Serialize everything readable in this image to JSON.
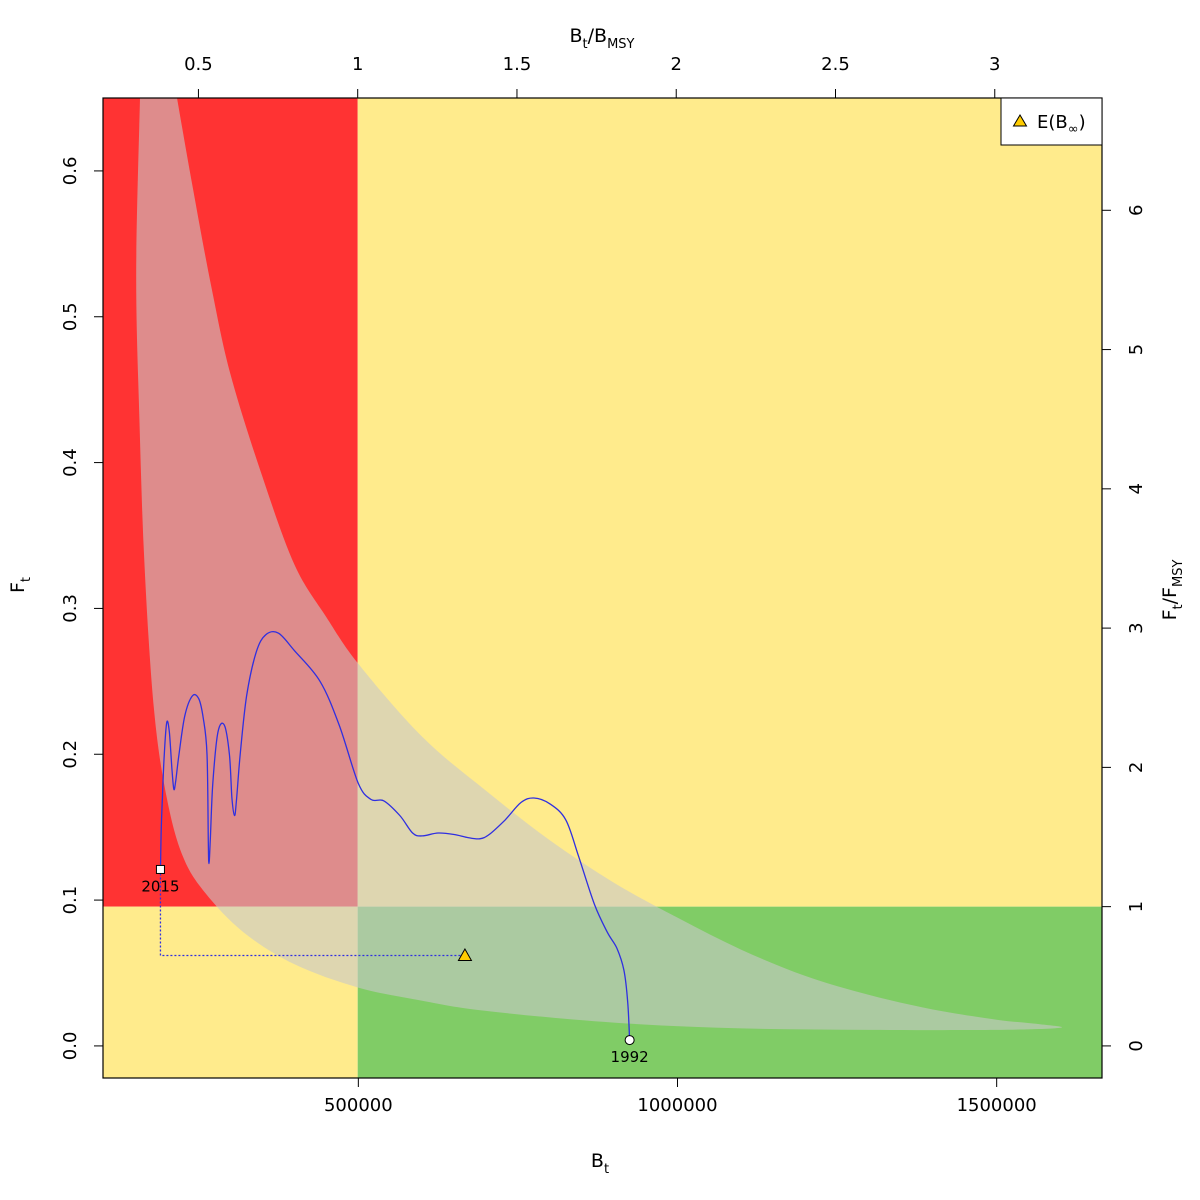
{
  "chart_data": {
    "type": "line",
    "xlabel": {
      "main": "B",
      "sub": "t"
    },
    "ylabel": {
      "main": "F",
      "sub": "t"
    },
    "x2label": {
      "main1": "B",
      "sub1": "t",
      "sep": "/B",
      "sub2": "MSY"
    },
    "y2label": {
      "main1": "F",
      "sub1": "t",
      "sep": "/F",
      "sub2": "MSY"
    },
    "xlim": [
      100000,
      1665000
    ],
    "ylim": [
      -0.022,
      0.65
    ],
    "x_ticks": [
      500000,
      1000000,
      1500000
    ],
    "x_tick_labels": [
      "500000",
      "1000000",
      "1500000"
    ],
    "y_ticks": [
      0.0,
      0.1,
      0.2,
      0.3,
      0.4,
      0.5,
      0.6
    ],
    "y_tick_labels": [
      "0.0",
      "0.1",
      "0.2",
      "0.3",
      "0.4",
      "0.5",
      "0.6"
    ],
    "top_ticks": [
      0.5,
      1,
      1.5,
      2,
      2.5,
      3
    ],
    "top_tick_labels": [
      "0.5",
      "1",
      "1.5",
      "2",
      "2.5",
      "3"
    ],
    "right_ticks": [
      0,
      1,
      2,
      3,
      4,
      5,
      6
    ],
    "right_tick_labels": [
      "0",
      "1",
      "2",
      "3",
      "4",
      "5",
      "6"
    ],
    "bmsy": 499000,
    "fmsy": 0.0955,
    "zone_colors": {
      "red": "#ff3333",
      "yellow": "#ffeb8c",
      "green": "#80cc66"
    },
    "envelope_color": "#c8c8c8",
    "line_color": "#2f2fe0",
    "marker_color": "#ffcc00",
    "envelope": {
      "upper": [
        [
          216000,
          0.65
        ],
        [
          240000,
          0.59
        ],
        [
          270000,
          0.52
        ],
        [
          300000,
          0.46
        ],
        [
          350000,
          0.39
        ],
        [
          400000,
          0.33
        ],
        [
          450000,
          0.294
        ],
        [
          500000,
          0.262
        ],
        [
          600000,
          0.212
        ],
        [
          700000,
          0.175
        ],
        [
          800000,
          0.141
        ],
        [
          900000,
          0.112
        ],
        [
          1000000,
          0.088
        ],
        [
          1100000,
          0.066
        ],
        [
          1200000,
          0.048
        ],
        [
          1300000,
          0.035
        ],
        [
          1400000,
          0.025
        ],
        [
          1500000,
          0.018
        ],
        [
          1565000,
          0.015
        ],
        [
          1600000,
          0.0125
        ]
      ],
      "lower": [
        [
          1600000,
          0.0125
        ],
        [
          1500000,
          0.011
        ],
        [
          1300000,
          0.011
        ],
        [
          1100000,
          0.012
        ],
        [
          900000,
          0.016
        ],
        [
          700000,
          0.024
        ],
        [
          600000,
          0.031
        ],
        [
          500000,
          0.04
        ],
        [
          400000,
          0.056
        ],
        [
          320000,
          0.078
        ],
        [
          260000,
          0.105
        ],
        [
          225000,
          0.13
        ],
        [
          200000,
          0.17
        ],
        [
          180000,
          0.23
        ],
        [
          165000,
          0.33
        ],
        [
          157000,
          0.43
        ],
        [
          152000,
          0.53
        ],
        [
          158000,
          0.65
        ]
      ]
    },
    "series": [
      {
        "points": [
          [
            925000,
            0.004
          ],
          [
            922000,
            0.03
          ],
          [
            916000,
            0.052
          ],
          [
            905000,
            0.067
          ],
          [
            890000,
            0.078
          ],
          [
            870000,
            0.097
          ],
          [
            845000,
            0.13
          ],
          [
            825000,
            0.155
          ],
          [
            800000,
            0.166
          ],
          [
            775000,
            0.17
          ],
          [
            755000,
            0.167
          ],
          [
            730000,
            0.155
          ],
          [
            705000,
            0.145
          ],
          [
            690000,
            0.142
          ],
          [
            670000,
            0.143
          ],
          [
            650000,
            0.145
          ],
          [
            625000,
            0.146
          ],
          [
            600000,
            0.144
          ],
          [
            585000,
            0.146
          ],
          [
            565000,
            0.158
          ],
          [
            540000,
            0.168
          ],
          [
            520000,
            0.169
          ],
          [
            500000,
            0.18
          ],
          [
            470000,
            0.22
          ],
          [
            440000,
            0.25
          ],
          [
            400000,
            0.271
          ],
          [
            375000,
            0.283
          ],
          [
            355000,
            0.282
          ],
          [
            340000,
            0.27
          ],
          [
            325000,
            0.24
          ],
          [
            315000,
            0.2
          ],
          [
            309000,
            0.168
          ],
          [
            306000,
            0.158
          ],
          [
            302000,
            0.17
          ],
          [
            298000,
            0.2
          ],
          [
            290000,
            0.22
          ],
          [
            280000,
            0.215
          ],
          [
            272000,
            0.18
          ],
          [
            268000,
            0.14
          ],
          [
            266000,
            0.125
          ],
          [
            265000,
            0.14
          ],
          [
            263000,
            0.2
          ],
          [
            257000,
            0.225
          ],
          [
            250000,
            0.238
          ],
          [
            240000,
            0.24
          ],
          [
            228000,
            0.226
          ],
          [
            219000,
            0.2
          ],
          [
            214000,
            0.182
          ],
          [
            211000,
            0.176
          ],
          [
            208000,
            0.19
          ],
          [
            204000,
            0.215
          ],
          [
            200000,
            0.222
          ],
          [
            196000,
            0.2
          ],
          [
            193000,
            0.17
          ],
          [
            191000,
            0.145
          ],
          [
            190000,
            0.121
          ]
        ]
      }
    ],
    "start": {
      "x": 925000,
      "y": 0.004,
      "label": "1992"
    },
    "end": {
      "x": 190000,
      "y": 0.121,
      "label": "2015"
    },
    "equilibrium": {
      "x": 667000,
      "y": 0.062
    },
    "legend": {
      "position": "top-right",
      "label_main": "E(B",
      "label_sub": "∞",
      "label_close": ")"
    }
  }
}
